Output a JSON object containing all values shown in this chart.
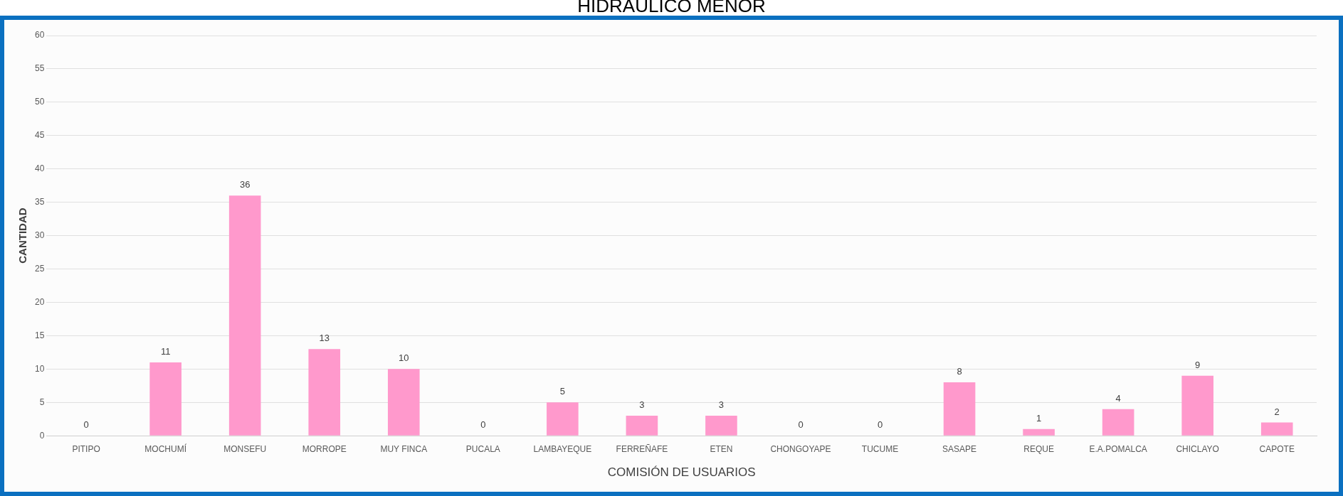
{
  "chart_data": {
    "type": "bar",
    "title": "HIDRAULICO MENOR",
    "xlabel": "COMISIÓN DE USUARIOS",
    "ylabel": "CANTIDAD",
    "categories": [
      "PITIPO",
      "MOCHUMÍ",
      "MONSEFU",
      "MORROPE",
      "MUY FINCA",
      "PUCALA",
      "LAMBAYEQUE",
      "FERREÑAFE",
      "ETEN",
      "CHONGOYAPE",
      "TUCUME",
      "SASAPE",
      "REQUE",
      "E.A.POMALCA",
      "CHICLAYO",
      "CAPOTE"
    ],
    "values": [
      0,
      11,
      36,
      13,
      10,
      0,
      5,
      3,
      3,
      0,
      0,
      8,
      1,
      4,
      9,
      2
    ],
    "color": "#ff99cc",
    "ylim": [
      0,
      60
    ],
    "yticks": [
      0,
      5,
      10,
      15,
      20,
      25,
      30,
      35,
      40,
      45,
      50,
      55,
      60
    ],
    "grid": "y",
    "data_labels": true,
    "legend": false
  }
}
